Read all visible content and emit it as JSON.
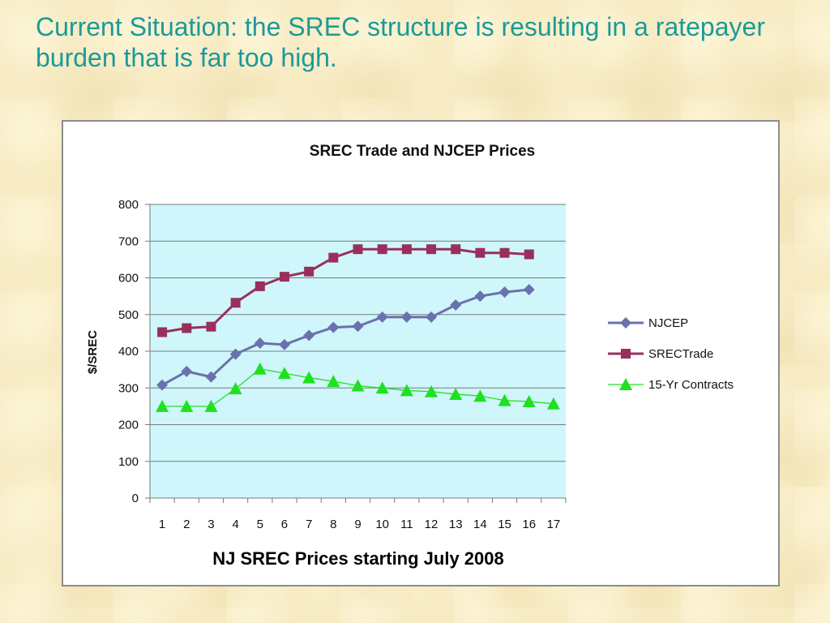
{
  "slide": {
    "title": "Current Situation: the SREC structure is resulting in a ratepayer burden that is far too high."
  },
  "colors": {
    "background": "#f7ebc4",
    "title_text": "#1b9a9a",
    "plot_area": "#cff6fb",
    "njcep": "#6a72ad",
    "srectrade": "#9a2f5c",
    "contracts": "#20e020"
  },
  "chart_data": {
    "type": "line",
    "title": "SREC Trade and NJCEP Prices",
    "xlabel": "NJ SREC Prices starting July 2008",
    "ylabel": "$/SREC",
    "categories": [
      "1",
      "2",
      "3",
      "4",
      "5",
      "6",
      "7",
      "8",
      "9",
      "10",
      "11",
      "12",
      "13",
      "14",
      "15",
      "16",
      "17"
    ],
    "ylim": [
      0,
      800
    ],
    "yticks": [
      0,
      100,
      200,
      300,
      400,
      500,
      600,
      700,
      800
    ],
    "grid": true,
    "legend_position": "right",
    "series": [
      {
        "name": "NJCEP",
        "marker": "diamond",
        "color": "#6a72ad",
        "values": [
          308,
          345,
          330,
          392,
          422,
          418,
          443,
          465,
          468,
          493,
          493,
          493,
          526,
          550,
          561,
          568,
          null
        ]
      },
      {
        "name": "SRECTrade",
        "marker": "square",
        "color": "#9a2f5c",
        "values": [
          452,
          463,
          467,
          532,
          577,
          603,
          617,
          655,
          678,
          678,
          678,
          678,
          678,
          668,
          668,
          664,
          null
        ]
      },
      {
        "name": "15-Yr Contracts",
        "marker": "triangle",
        "color": "#20e020",
        "values": [
          250,
          250,
          250,
          298,
          352,
          340,
          328,
          318,
          306,
          300,
          293,
          290,
          283,
          278,
          266,
          263,
          257
        ]
      }
    ]
  }
}
